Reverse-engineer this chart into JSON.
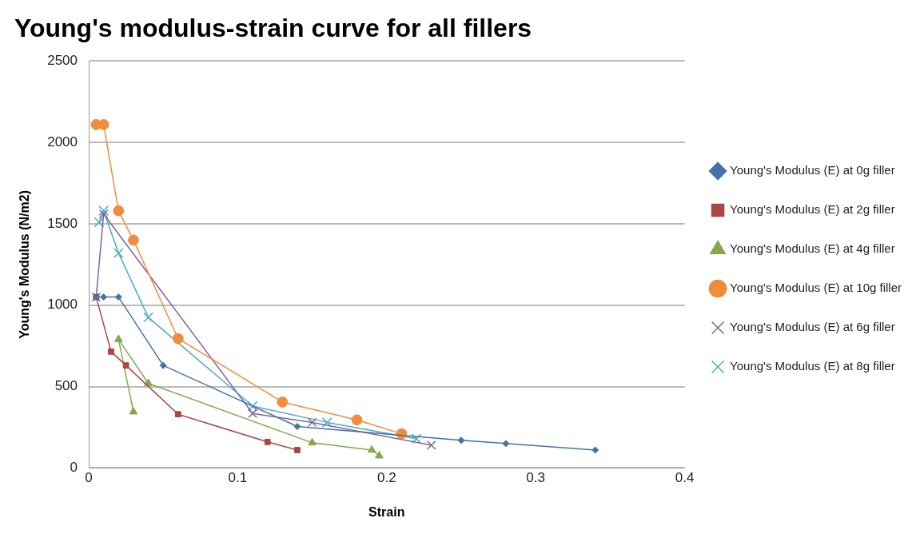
{
  "chart_data": {
    "type": "line",
    "title": "Young's modulus-strain curve for all fillers",
    "xlabel": "Strain",
    "ylabel": "Young's Modulus (N/m2)",
    "xlim": [
      0,
      0.4
    ],
    "xticks": [
      0,
      0.1,
      0.2,
      0.3,
      0.4
    ],
    "ylim": [
      0,
      2500
    ],
    "yticks": [
      0,
      500,
      1000,
      1500,
      2000,
      2500
    ],
    "grid": "y",
    "legend": "right",
    "line_style": "solid",
    "series": [
      {
        "name": "Young's Modulus (E) at 0g filler",
        "color": "#4572a7",
        "marker": "diamond",
        "x": [
          0.005,
          0.01,
          0.02,
          0.05,
          0.14,
          0.25,
          0.28,
          0.34
        ],
        "values": [
          1050,
          1050,
          1050,
          630,
          255,
          170,
          150,
          110
        ]
      },
      {
        "name": "Young's Modulus (E) at 2g filler",
        "color": "#aa4643",
        "marker": "square",
        "x": [
          0.005,
          0.015,
          0.025,
          0.06,
          0.12,
          0.14
        ],
        "values": [
          1050,
          715,
          630,
          330,
          160,
          110
        ]
      },
      {
        "name": "Young's Modulus (E) at 4g filler",
        "color": "#89a54e",
        "marker": "triangle",
        "x": [
          0.03,
          0.02,
          0.04,
          0.15,
          0.19,
          0.195
        ],
        "values": [
          345,
          790,
          520,
          155,
          110,
          75
        ]
      },
      {
        "name": "Young's Modulus (E) at 10g filler",
        "color": "#f08c3c",
        "marker": "circle",
        "x": [
          0.005,
          0.01,
          0.02,
          0.03,
          0.06,
          0.13,
          0.18,
          0.21
        ],
        "values": [
          2110,
          2110,
          1580,
          1400,
          795,
          405,
          295,
          210
        ]
      },
      {
        "name": "Young's Modulus (E) at 6g filler",
        "color": "#8064a2",
        "marker": "cross",
        "x": [
          0.005,
          0.01,
          0.11,
          0.15,
          0.23
        ],
        "values": [
          1050,
          1560,
          335,
          280,
          140
        ]
      },
      {
        "name": "Young's Modulus (E) at 8g filler",
        "color": "#4bacc6",
        "marker": "cross",
        "x": [
          0.007,
          0.01,
          0.02,
          0.04,
          0.11,
          0.16,
          0.22
        ],
        "values": [
          1510,
          1580,
          1320,
          925,
          380,
          280,
          180
        ]
      }
    ]
  }
}
